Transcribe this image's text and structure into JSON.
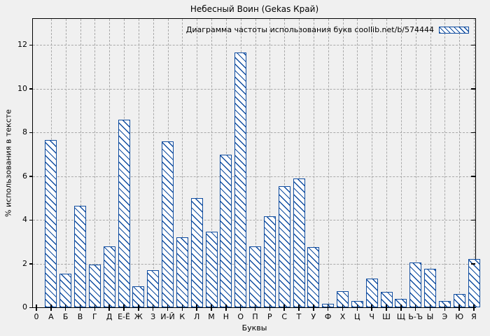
{
  "chart_data": {
    "type": "bar",
    "title": "Небесный Воин (Gekas Край)",
    "legend": "Диаграмма частоты использования букв coollib.net/b/574444",
    "legend_position": "top-right-inside",
    "xlabel": "Буквы",
    "ylabel": "% использования в тексте",
    "x_origin_label": "0",
    "categories": [
      "А",
      "Б",
      "В",
      "Г",
      "Д",
      "Е-Ё",
      "Ж",
      "З",
      "И-Й",
      "К",
      "Л",
      "М",
      "Н",
      "О",
      "П",
      "Р",
      "С",
      "Т",
      "У",
      "Ф",
      "Х",
      "Ц",
      "Ч",
      "Ш",
      "Щ",
      "Ь-Ъ",
      "Ы",
      "Э",
      "Ю",
      "Я"
    ],
    "values": [
      7.65,
      1.55,
      4.65,
      1.95,
      2.8,
      8.6,
      0.95,
      1.7,
      7.6,
      3.2,
      5.0,
      3.45,
      7.0,
      11.65,
      2.8,
      4.15,
      5.55,
      5.9,
      2.75,
      0.15,
      0.75,
      0.3,
      1.3,
      0.7,
      0.4,
      2.05,
      1.75,
      0.3,
      0.6,
      2.2
    ],
    "yticks": [
      0,
      2,
      4,
      6,
      8,
      10,
      12
    ],
    "ylim": [
      0,
      13.2
    ],
    "grid": true,
    "grid_style": "dashed",
    "bar_hatch": "diagonal-down",
    "colors": {
      "bar_outline": "#0f4c9f",
      "bar_fill": "#ffffff",
      "grid": "#a9a9a9",
      "axis": "#000000",
      "background": "#f0f0f0",
      "text": "#000000"
    }
  }
}
